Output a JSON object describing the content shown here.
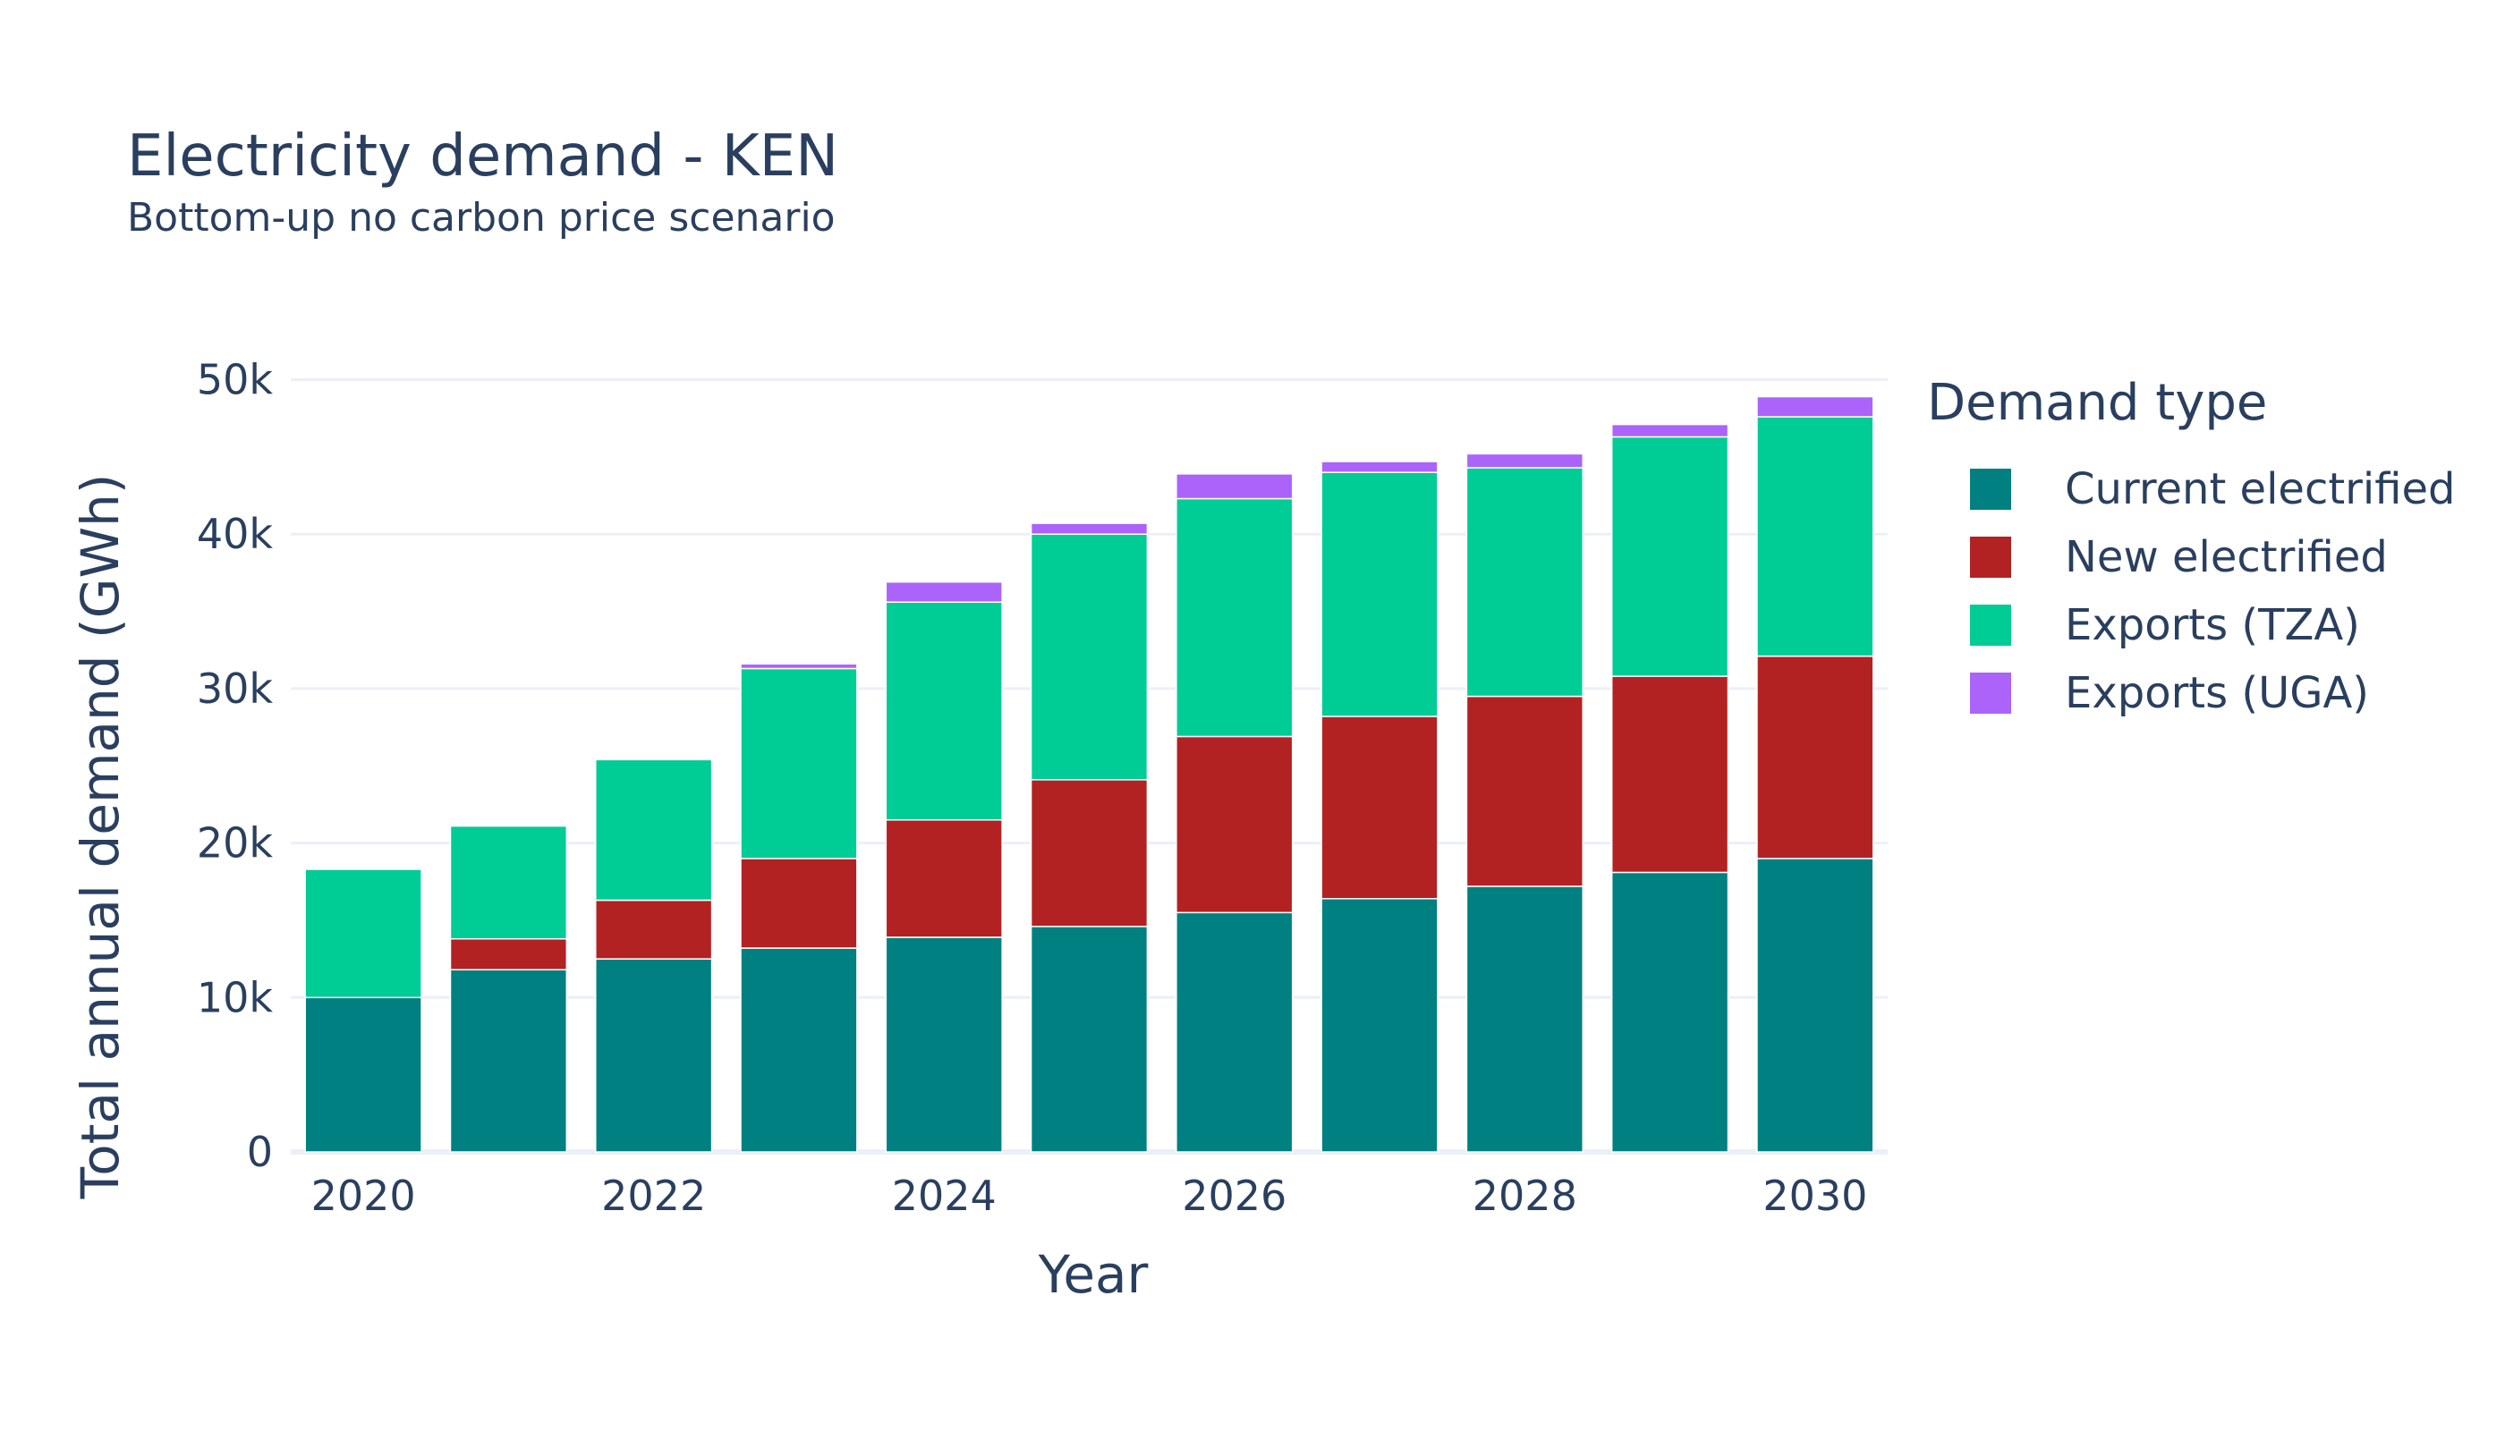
{
  "chart_data": {
    "type": "bar",
    "stacked": true,
    "title": "Electricity demand - KEN",
    "subtitle": "Bottom-up no carbon price scenario",
    "xlabel": "Year",
    "ylabel": "Total annual demand (GWh)",
    "x": [
      2020,
      2021,
      2022,
      2023,
      2024,
      2025,
      2026,
      2027,
      2028,
      2029,
      2030
    ],
    "x_ticks": [
      2020,
      2022,
      2024,
      2026,
      2028,
      2030
    ],
    "x_tick_labels": [
      "2020",
      "2022",
      "2024",
      "2026",
      "2028",
      "2030"
    ],
    "ylim": [
      0,
      52000
    ],
    "y_ticks": [
      0,
      10000,
      20000,
      30000,
      40000,
      50000
    ],
    "y_tick_labels": [
      "0",
      "10k",
      "20k",
      "30k",
      "40k",
      "50k"
    ],
    "grid": true,
    "legend_title": "Demand type",
    "legend_position": "right",
    "series": [
      {
        "name": "Current electrified",
        "color": "#008080",
        "values": [
          10000,
          11800,
          12500,
          13200,
          13900,
          14600,
          15500,
          16400,
          17200,
          18100,
          19000
        ]
      },
      {
        "name": "New electrified",
        "color": "#b22222",
        "values": [
          0,
          2000,
          3800,
          5800,
          7600,
          9500,
          11400,
          11800,
          12300,
          12700,
          13100
        ]
      },
      {
        "name": "Exports (TZA)",
        "color": "#00cc96",
        "values": [
          8300,
          7300,
          9100,
          12300,
          14100,
          15900,
          15400,
          15800,
          14800,
          15500,
          15500
        ]
      },
      {
        "name": "Exports (UGA)",
        "color": "#ab63fa",
        "values": [
          0,
          0,
          0,
          300,
          1300,
          700,
          1600,
          700,
          900,
          800,
          1300
        ]
      }
    ]
  }
}
